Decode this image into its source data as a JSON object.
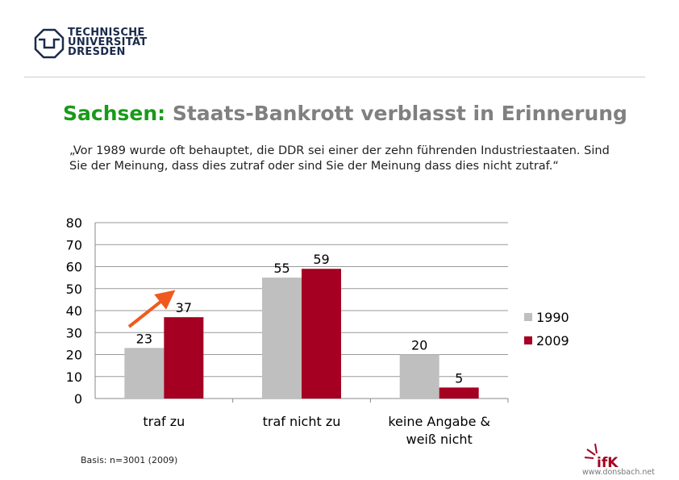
{
  "header": {
    "logo_lines": [
      "TECHNISCHE",
      "UNIVERSITÄT",
      "DRESDEN"
    ]
  },
  "title": {
    "prefix": "Sachsen:",
    "main": "Staats-Bankrott verblasst in Erinnerung"
  },
  "question": "„Vor 1989 wurde oft behauptet, die DDR sei einer der zehn führenden Industriestaaten. Sind Sie der Meinung, dass dies zutraf oder sind Sie der Meinung dass dies nicht zutraf.“",
  "footer": {
    "basis": "Basis: n=3001 (2009)",
    "brand": "ifK",
    "url": "www.donsbach.net"
  },
  "chart_data": {
    "type": "bar",
    "categories": [
      "traf zu",
      "traf nicht zu",
      "keine Angabe & weiß nicht"
    ],
    "series": [
      {
        "name": "1990",
        "values": [
          23,
          55,
          20
        ],
        "color": "#bfbfbf"
      },
      {
        "name": "2009",
        "values": [
          37,
          59,
          5
        ],
        "color": "#a50021"
      }
    ],
    "ylim": [
      0,
      80
    ],
    "yticks": [
      0,
      10,
      20,
      30,
      40,
      50,
      60,
      70,
      80
    ],
    "grid": true,
    "legend": "right",
    "annotation": "arrow-up-traf-zu",
    "arrow_color": "#f05a1e"
  }
}
